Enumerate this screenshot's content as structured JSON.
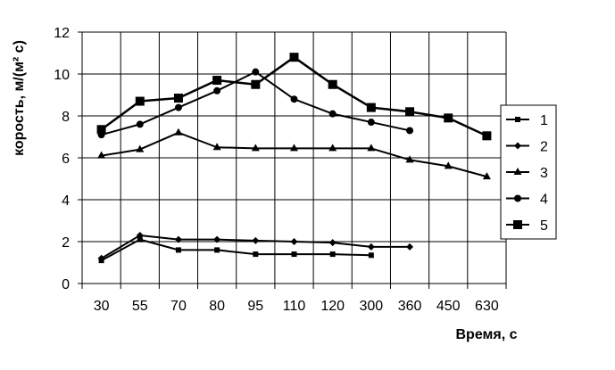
{
  "chart_data": {
    "type": "line",
    "title": "",
    "xlabel": "Время, с",
    "ylabel": "корость, м/(м² с)",
    "categories": [
      "30",
      "55",
      "70",
      "80",
      "95",
      "110",
      "120",
      "300",
      "360",
      "450",
      "630"
    ],
    "ylim": [
      0,
      12
    ],
    "yticks": [
      0,
      2,
      4,
      6,
      8,
      10,
      12
    ],
    "grid": "vertical-and-horizontal",
    "legend_position": "right",
    "series": [
      {
        "name": "1",
        "marker": "small-square",
        "values": [
          1.1,
          2.1,
          1.6,
          1.6,
          1.4,
          1.4,
          1.4,
          1.35,
          null,
          null,
          null
        ]
      },
      {
        "name": "2",
        "marker": "diamond",
        "values": [
          1.2,
          2.3,
          2.1,
          2.1,
          2.05,
          2.0,
          1.95,
          1.75,
          1.75,
          null,
          null
        ]
      },
      {
        "name": "3",
        "marker": "triangle",
        "values": [
          6.1,
          6.4,
          7.2,
          6.5,
          6.45,
          6.45,
          6.45,
          6.45,
          5.9,
          5.6,
          5.1
        ]
      },
      {
        "name": "4",
        "marker": "circle",
        "values": [
          7.1,
          7.6,
          8.4,
          9.2,
          10.1,
          8.8,
          8.1,
          7.7,
          7.3,
          null,
          null
        ]
      },
      {
        "name": "5",
        "marker": "large-square",
        "values": [
          7.35,
          8.7,
          8.85,
          9.7,
          9.5,
          10.8,
          9.5,
          8.4,
          8.2,
          7.9,
          7.05
        ]
      }
    ]
  }
}
